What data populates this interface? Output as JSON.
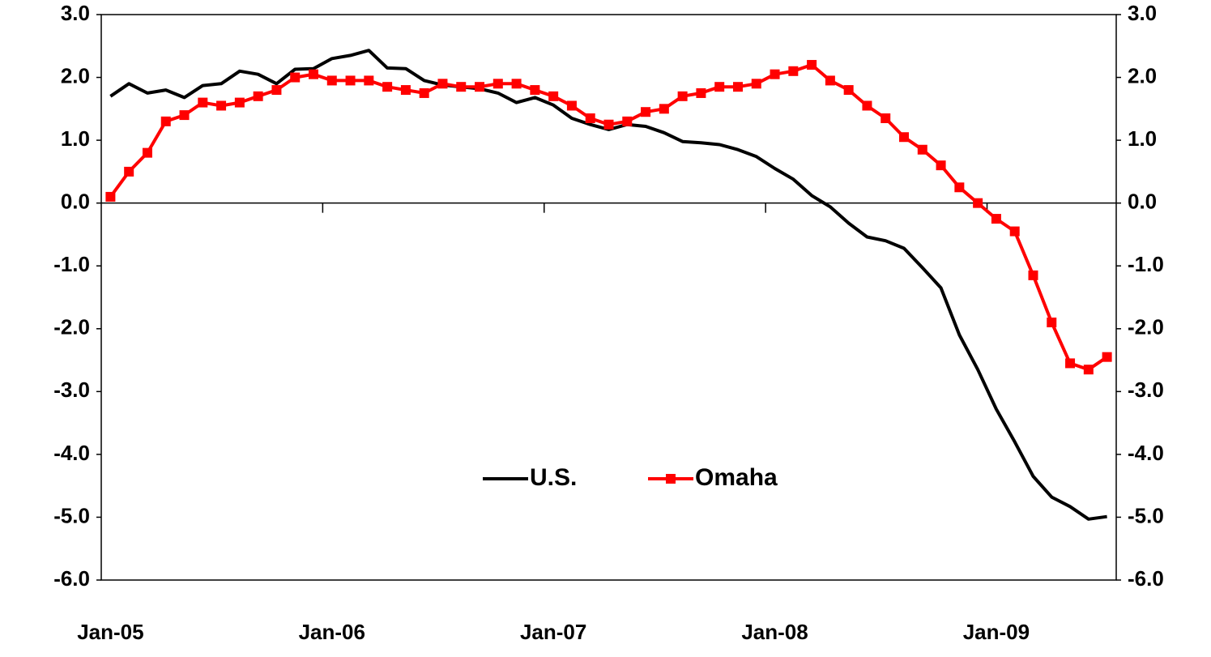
{
  "chart_data": {
    "type": "line",
    "categories": [
      "Jan-05",
      null,
      null,
      null,
      null,
      null,
      null,
      null,
      null,
      null,
      null,
      null,
      "Jan-06",
      null,
      null,
      null,
      null,
      null,
      null,
      null,
      null,
      null,
      null,
      null,
      "Jan-07",
      null,
      null,
      null,
      null,
      null,
      null,
      null,
      null,
      null,
      null,
      null,
      "Jan-08",
      null,
      null,
      null,
      null,
      null,
      null,
      null,
      null,
      null,
      null,
      null,
      "Jan-09",
      null,
      null,
      null,
      null,
      null,
      null
    ],
    "series": [
      {
        "name": "U.S.",
        "color": "#000000",
        "marker": "none",
        "values": [
          1.7,
          1.9,
          1.75,
          1.8,
          1.68,
          1.87,
          1.9,
          2.1,
          2.05,
          1.9,
          2.13,
          2.14,
          2.3,
          2.35,
          2.43,
          2.15,
          2.14,
          1.95,
          1.88,
          1.85,
          1.82,
          1.75,
          1.6,
          1.68,
          1.56,
          1.35,
          1.25,
          1.17,
          1.25,
          1.22,
          1.12,
          0.98,
          0.96,
          0.93,
          0.85,
          0.74,
          0.55,
          0.38,
          0.12,
          -0.06,
          -0.32,
          -0.54,
          -0.6,
          -0.72,
          -1.03,
          -1.35,
          -2.1,
          -2.65,
          -3.28,
          -3.8,
          -4.35,
          -4.68,
          -4.83,
          -5.03,
          -4.99
        ]
      },
      {
        "name": "Omaha",
        "color": "#ff0000",
        "marker": "square",
        "values": [
          0.1,
          0.5,
          0.8,
          1.3,
          1.4,
          1.6,
          1.55,
          1.6,
          1.7,
          1.8,
          2.0,
          2.05,
          1.95,
          1.95,
          1.95,
          1.85,
          1.8,
          1.75,
          1.9,
          1.85,
          1.85,
          1.9,
          1.9,
          1.8,
          1.7,
          1.55,
          1.35,
          1.25,
          1.3,
          1.45,
          1.5,
          1.7,
          1.75,
          1.85,
          1.85,
          1.9,
          2.05,
          2.1,
          2.2,
          1.95,
          1.8,
          1.55,
          1.35,
          1.05,
          0.85,
          0.6,
          0.25,
          0.0,
          -0.25,
          -0.45,
          -1.15,
          -1.9,
          -2.55,
          -2.65,
          -2.45
        ]
      }
    ],
    "ylim": [
      -6,
      3
    ],
    "yticks": [
      {
        "value": -6,
        "label": "-6.0"
      },
      {
        "value": -5,
        "label": "-5.0"
      },
      {
        "value": -4,
        "label": "-4.0"
      },
      {
        "value": -3,
        "label": "-3.0"
      },
      {
        "value": -2,
        "label": "-2.0"
      },
      {
        "value": -1,
        "label": "-1.0"
      },
      {
        "value": 0,
        "label": "0.0"
      },
      {
        "value": 1,
        "label": "1.0"
      },
      {
        "value": 2,
        "label": "2.0"
      },
      {
        "value": 3,
        "label": "3.0"
      }
    ],
    "y2lim": [
      -6,
      3
    ],
    "y2ticks": [
      {
        "value": -6,
        "label": "-6.0"
      },
      {
        "value": -5,
        "label": "-5.0"
      },
      {
        "value": -4,
        "label": "-4.0"
      },
      {
        "value": -3,
        "label": "-3.0"
      },
      {
        "value": -2,
        "label": "-2.0"
      },
      {
        "value": -1,
        "label": "-1.0"
      },
      {
        "value": 0,
        "label": "0.0"
      },
      {
        "value": 1,
        "label": "1.0"
      },
      {
        "value": 2,
        "label": "2.0"
      },
      {
        "value": 3,
        "label": "3.0"
      }
    ],
    "grid": false,
    "legend": "bottom"
  }
}
